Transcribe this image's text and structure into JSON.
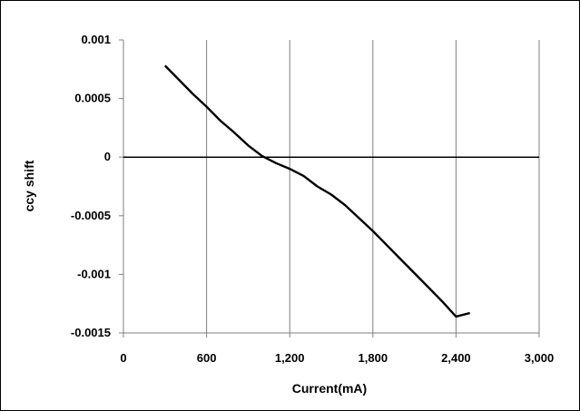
{
  "chart_data": {
    "type": "line",
    "title": "",
    "xlabel": "Current(mA)",
    "ylabel": "ccy shift",
    "xlim": [
      0,
      3000
    ],
    "ylim": [
      -0.0015,
      0.001
    ],
    "x_ticks": [
      0,
      600,
      1200,
      1800,
      2400,
      3000
    ],
    "x_tick_labels": [
      "0",
      "600",
      "1,200",
      "1,800",
      "2,400",
      "3,000"
    ],
    "y_ticks": [
      0.001,
      0.0005,
      0,
      -0.0005,
      -0.001,
      -0.0015
    ],
    "y_tick_labels": [
      "0.001",
      "0.0005",
      "0",
      "-0.0005",
      "-0.001",
      "-0.0015"
    ],
    "grid": "vertical",
    "legend": "none",
    "line_color": "#000000",
    "series": [
      {
        "x": [
          300,
          400,
          500,
          600,
          700,
          800,
          900,
          1000,
          1050,
          1100,
          1200,
          1300,
          1400,
          1500,
          1600,
          1700,
          1800,
          1900,
          2000,
          2100,
          2200,
          2300,
          2400,
          2500
        ],
        "y": [
          0.00078,
          0.00066,
          0.00054,
          0.00043,
          0.00031,
          0.00021,
          0.0001,
          1e-05,
          -2e-05,
          -5e-05,
          -0.0001,
          -0.00016,
          -0.00025,
          -0.00032,
          -0.00041,
          -0.00052,
          -0.00063,
          -0.00075,
          -0.00087,
          -0.00099,
          -0.00111,
          -0.00123,
          -0.00136,
          -0.00133
        ]
      }
    ]
  }
}
